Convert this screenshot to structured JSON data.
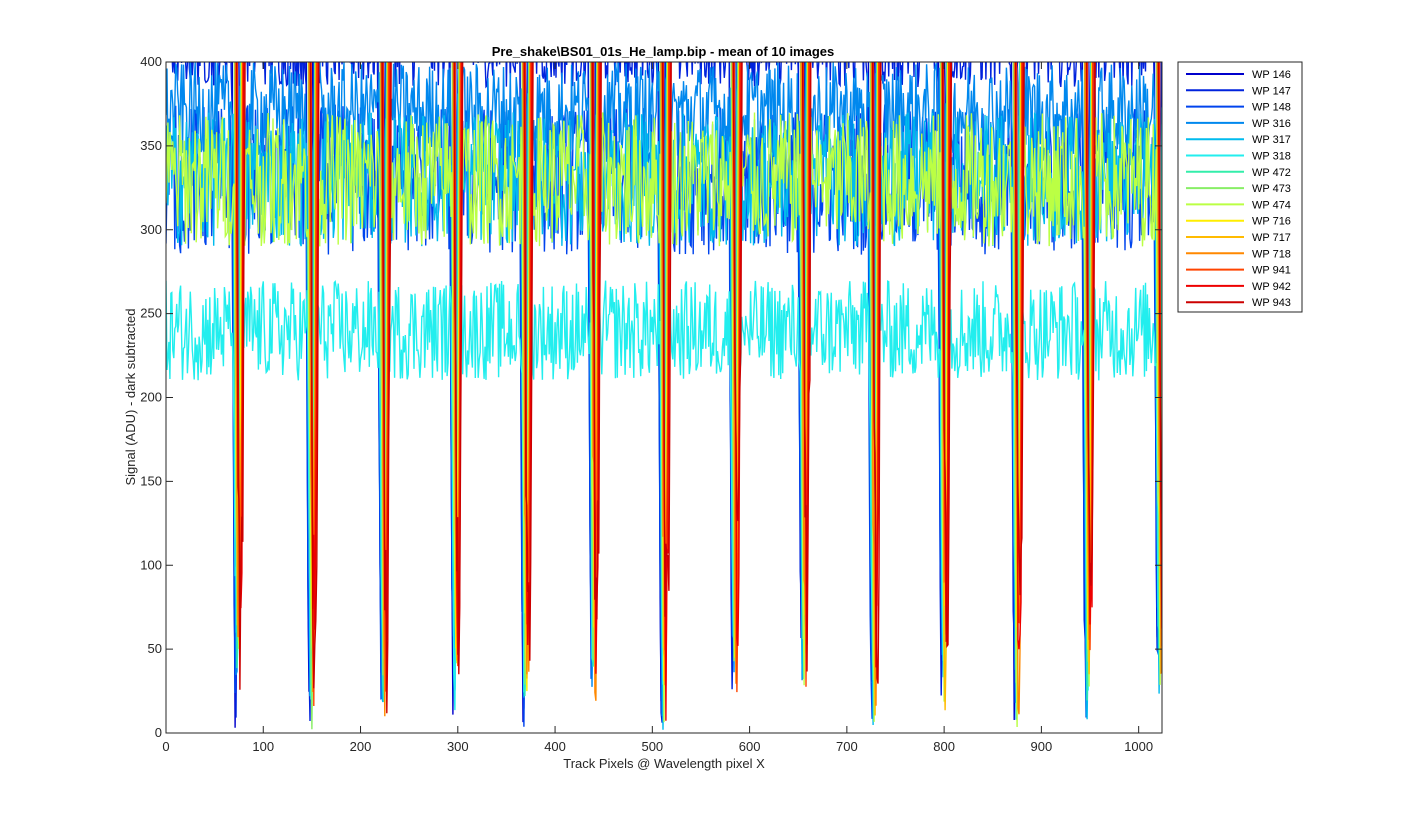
{
  "chart_data": {
    "type": "line",
    "title": "Pre_shake\\BS01_01s_He_lamp.bip - mean of 10 images",
    "xlabel": "Track Pixels @ Wavelength pixel X",
    "ylabel": "Signal (ADU) - dark subtracted",
    "xlim": [
      0,
      1024
    ],
    "ylim": [
      0,
      400
    ],
    "xticks": [
      0,
      100,
      200,
      300,
      400,
      500,
      600,
      700,
      800,
      900,
      1000
    ],
    "yticks": [
      0,
      50,
      100,
      150,
      200,
      250,
      300,
      350,
      400
    ],
    "grid": false,
    "legend_position": "outside-right-top",
    "track_dips": [
      {
        "center": 74,
        "min": 0
      },
      {
        "center": 150,
        "min": 2
      },
      {
        "center": 224,
        "min": 0
      },
      {
        "center": 298,
        "min": 3
      },
      {
        "center": 370,
        "min": 0
      },
      {
        "center": 440,
        "min": 15
      },
      {
        "center": 512,
        "min": 0
      },
      {
        "center": 585,
        "min": 14
      },
      {
        "center": 656,
        "min": 22
      },
      {
        "center": 728,
        "min": 0
      },
      {
        "center": 800,
        "min": 12
      },
      {
        "center": 875,
        "min": 0
      },
      {
        "center": 948,
        "min": 0
      },
      {
        "center": 1022,
        "min": 22
      }
    ],
    "series": [
      {
        "name": "WP 146",
        "color": "#0000cc",
        "level": 420,
        "noise": 20
      },
      {
        "name": "WP 147",
        "color": "#0022dd",
        "level": 410,
        "noise": 25
      },
      {
        "name": "WP 148",
        "color": "#0044ee",
        "level": 330,
        "noise": 45
      },
      {
        "name": "WP 316",
        "color": "#0088ee",
        "level": 370,
        "noise": 30
      },
      {
        "name": "WP 317",
        "color": "#00bbee",
        "level": 330,
        "noise": 40
      },
      {
        "name": "WP 318",
        "color": "#22eeee",
        "level": 240,
        "noise": 30
      },
      {
        "name": "WP 472",
        "color": "#33eeaa",
        "level": 430,
        "noise": 10
      },
      {
        "name": "WP 473",
        "color": "#88ee66",
        "level": 440,
        "noise": 10
      },
      {
        "name": "WP 474",
        "color": "#bbff44",
        "level": 330,
        "noise": 40
      },
      {
        "name": "WP 716",
        "color": "#ffee00",
        "level": 460,
        "noise": 5
      },
      {
        "name": "WP 717",
        "color": "#ffbb00",
        "level": 470,
        "noise": 5
      },
      {
        "name": "WP 718",
        "color": "#ff8800",
        "level": 480,
        "noise": 5
      },
      {
        "name": "WP 941",
        "color": "#ff4400",
        "level": 490,
        "noise": 5
      },
      {
        "name": "WP 942",
        "color": "#ee0000",
        "level": 500,
        "noise": 5
      },
      {
        "name": "WP 943",
        "color": "#cc0000",
        "level": 510,
        "noise": 5
      }
    ]
  }
}
